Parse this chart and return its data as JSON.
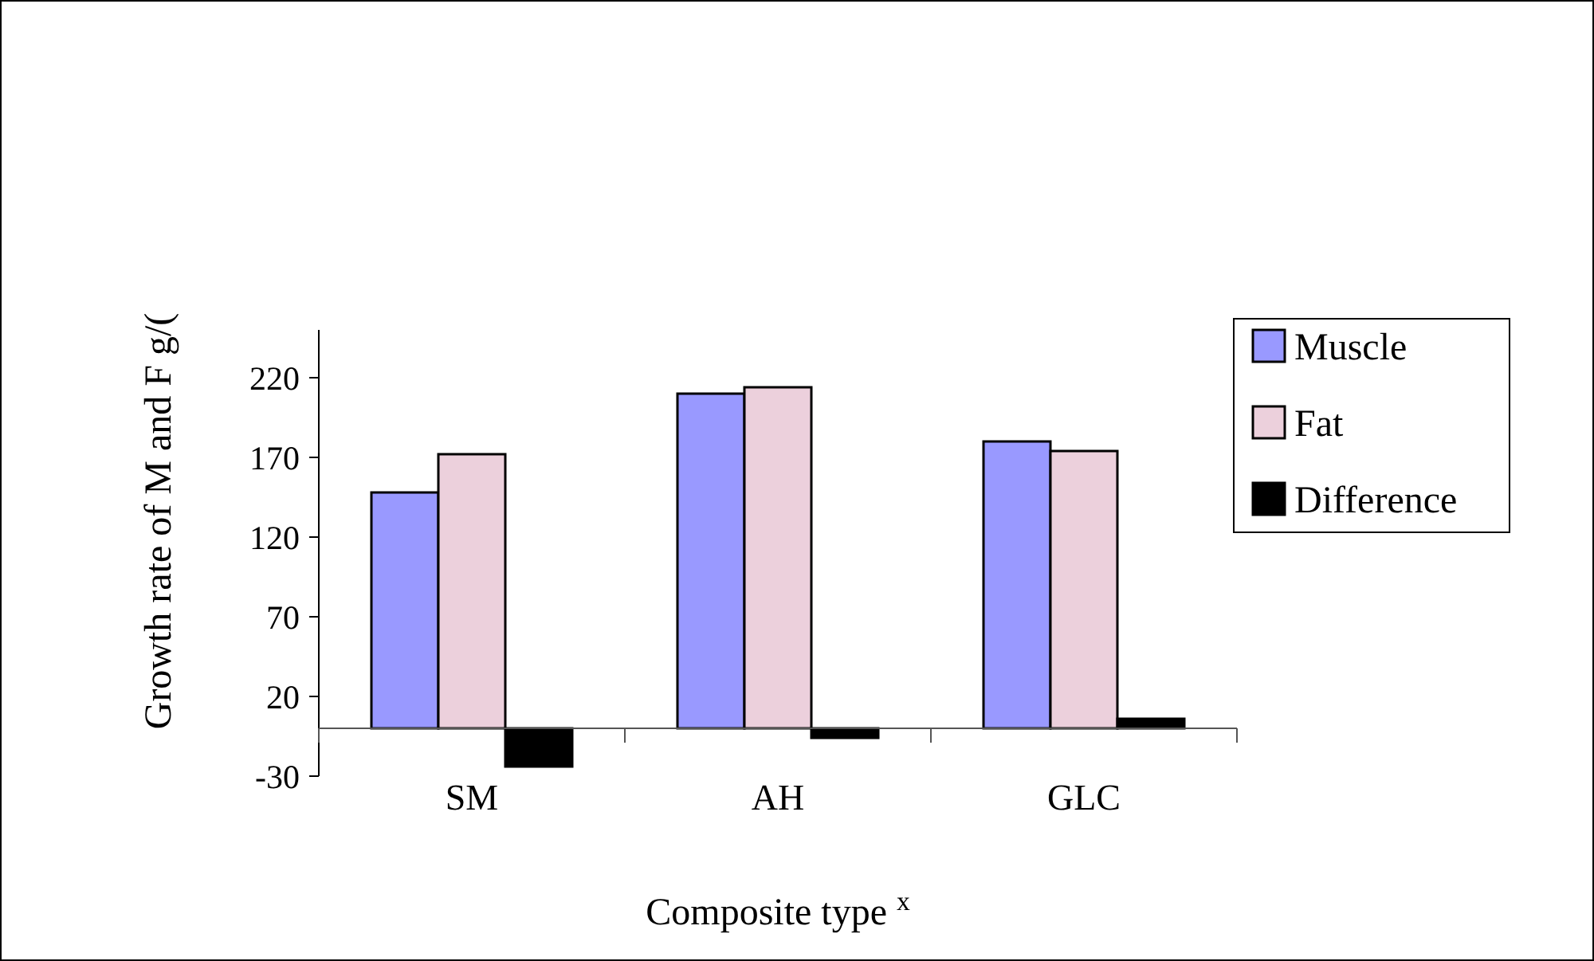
{
  "chart_data": {
    "type": "bar",
    "xlabel": "Composite type $^{x}$",
    "ylabel": "Growth rate of M and F g/(",
    "categories": [
      "SM",
      "AH",
      "GLC"
    ],
    "series": [
      {
        "name": "Muscle",
        "color": "#9999ff",
        "values": [
          148,
          210,
          180
        ]
      },
      {
        "name": "Fat",
        "color": "#ecd0dc",
        "values": [
          172,
          214,
          174
        ]
      },
      {
        "name": "Difference",
        "color": "#000000",
        "values": [
          -24,
          -6,
          6
        ]
      }
    ],
    "ylim": [
      -30,
      250
    ],
    "yticks": [
      -30,
      20,
      70,
      120,
      170,
      220
    ],
    "legend": "right",
    "grid": false
  }
}
